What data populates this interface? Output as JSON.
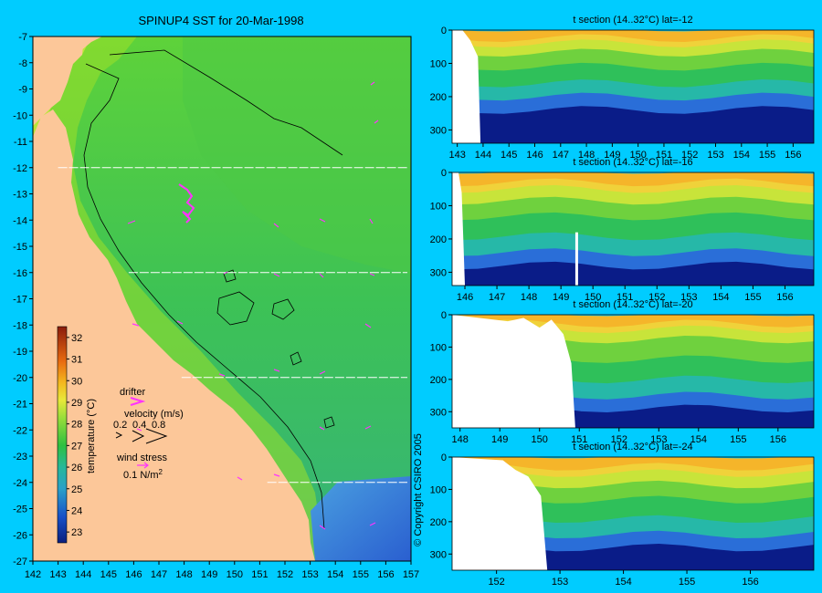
{
  "map": {
    "title": "SPINUP4 SST for 20-Mar-1998",
    "xticks": [
      142,
      143,
      144,
      145,
      146,
      147,
      148,
      149,
      150,
      151,
      152,
      153,
      154,
      155,
      156,
      157
    ],
    "yticks": [
      -7,
      -8,
      -9,
      -10,
      -11,
      -12,
      -13,
      -14,
      -15,
      -16,
      -17,
      -18,
      -19,
      -20,
      -21,
      -22,
      -23,
      -24,
      -25,
      -26,
      -27
    ],
    "section_lats": [
      -12,
      -16,
      -20,
      -24
    ],
    "colorbar": {
      "label": "temperature (°C)",
      "ticks": [
        32,
        31,
        30,
        29,
        28,
        27,
        26,
        25,
        24,
        23
      ],
      "range": [
        22.5,
        32.5
      ]
    },
    "legend": {
      "drifter_label": "drifter",
      "velocity_label": "velocity (m/s)",
      "velocity_values": [
        "0.2",
        "0.4",
        "0.8"
      ],
      "wind_label": "wind stress",
      "wind_value": "0.1 N/m",
      "wind_sup": "2"
    },
    "copyright": "© Copyright CSIRO 2005",
    "colors": {
      "land": "#fcc799",
      "drifter": "#ff33ff",
      "background": "#00ccff"
    }
  },
  "chart_data": [
    {
      "type": "heatmap",
      "title": "SPINUP4 SST for 20-Mar-1998",
      "xlim": [
        142,
        157
      ],
      "ylim": [
        -27,
        -7
      ],
      "colorbar_label": "temperature (°C)",
      "colorbar_range": [
        23,
        32
      ]
    },
    {
      "type": "heatmap",
      "title": "t section (14..32°C) lat=-12",
      "xticks": [
        143,
        144,
        145,
        146,
        147,
        148,
        149,
        150,
        151,
        152,
        153,
        154,
        155,
        156
      ],
      "yticks": [
        0,
        100,
        200,
        300
      ],
      "xlim": [
        142.8,
        156.8
      ],
      "ylim": [
        340,
        0
      ],
      "mixed_layer_depth_m": 40,
      "thermocline_depth_m": 200,
      "coast_lon": 143.9
    },
    {
      "type": "heatmap",
      "title": "t section (14..32°C) lat=-16",
      "xticks": [
        146,
        147,
        148,
        149,
        150,
        151,
        152,
        153,
        154,
        155,
        156
      ],
      "yticks": [
        0,
        100,
        200,
        300
      ],
      "xlim": [
        145.6,
        156.9
      ],
      "ylim": [
        340,
        0
      ],
      "mixed_layer_depth_m": 50,
      "thermocline_depth_m": 240,
      "coast_lon": 145.9
    },
    {
      "type": "heatmap",
      "title": "t section (14..32°C) lat=-20",
      "xticks": [
        148,
        149,
        150,
        151,
        152,
        153,
        154,
        155,
        156
      ],
      "yticks": [
        0,
        100,
        200,
        300
      ],
      "xlim": [
        147.8,
        156.9
      ],
      "ylim": [
        350,
        0
      ],
      "mixed_layer_depth_m": 45,
      "thermocline_depth_m": 250,
      "coast_lon": 150.8
    },
    {
      "type": "heatmap",
      "title": "t section (14..32°C) lat=-24",
      "xticks": [
        152,
        153,
        154,
        155,
        156
      ],
      "yticks": [
        0,
        100,
        200,
        300
      ],
      "xlim": [
        151.3,
        157
      ],
      "ylim": [
        350,
        0
      ],
      "mixed_layer_depth_m": 50,
      "thermocline_depth_m": 240,
      "coast_lon": 152.8
    }
  ]
}
